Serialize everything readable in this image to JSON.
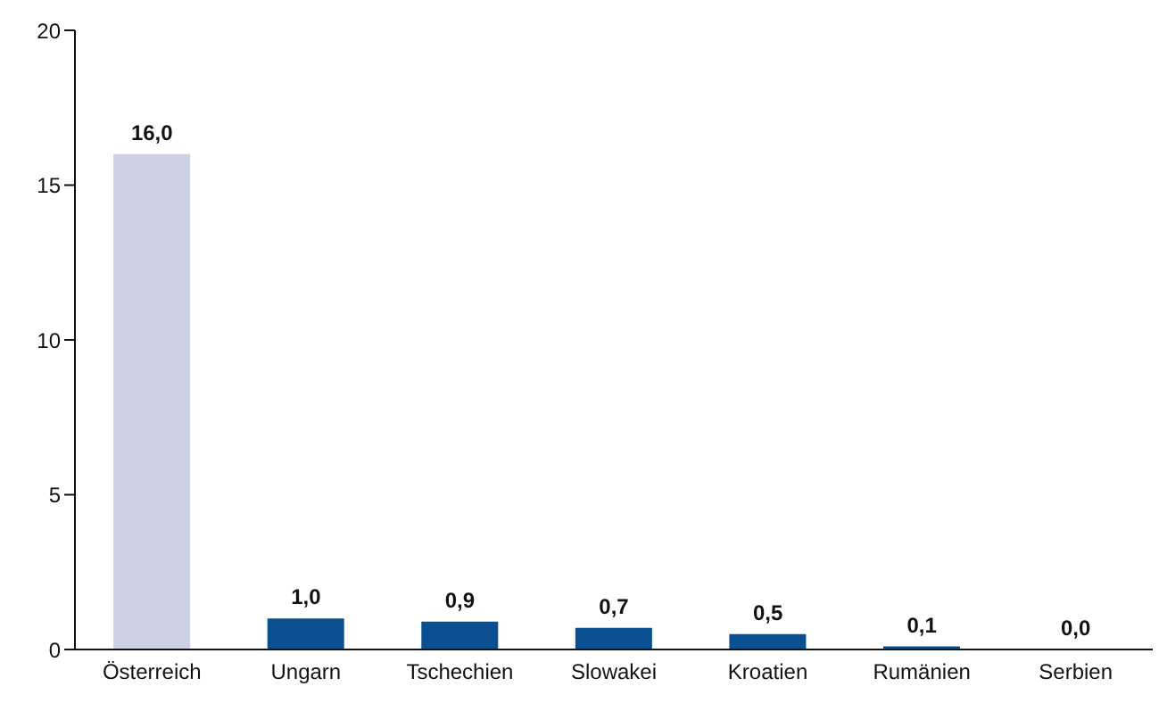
{
  "chart_data": {
    "type": "bar",
    "categories": [
      "Österreich",
      "Ungarn",
      "Tschechien",
      "Slowakei",
      "Kroatien",
      "Rumänien",
      "Serbien"
    ],
    "values": [
      16.0,
      1.0,
      0.9,
      0.7,
      0.5,
      0.1,
      0.0
    ],
    "colors": [
      "#cdd0e3",
      "#0a4f8f",
      "#0a4f8f",
      "#0a4f8f",
      "#0a4f8f",
      "#0a4f8f",
      "#0a4f8f"
    ],
    "value_labels": [
      "16,0",
      "1,0",
      "0,9",
      "0,7",
      "0,5",
      "0,1",
      "0,0"
    ],
    "ylim": [
      0,
      20
    ],
    "yticks": [
      0,
      5,
      10,
      15,
      20
    ],
    "grid": false,
    "legend": false
  }
}
